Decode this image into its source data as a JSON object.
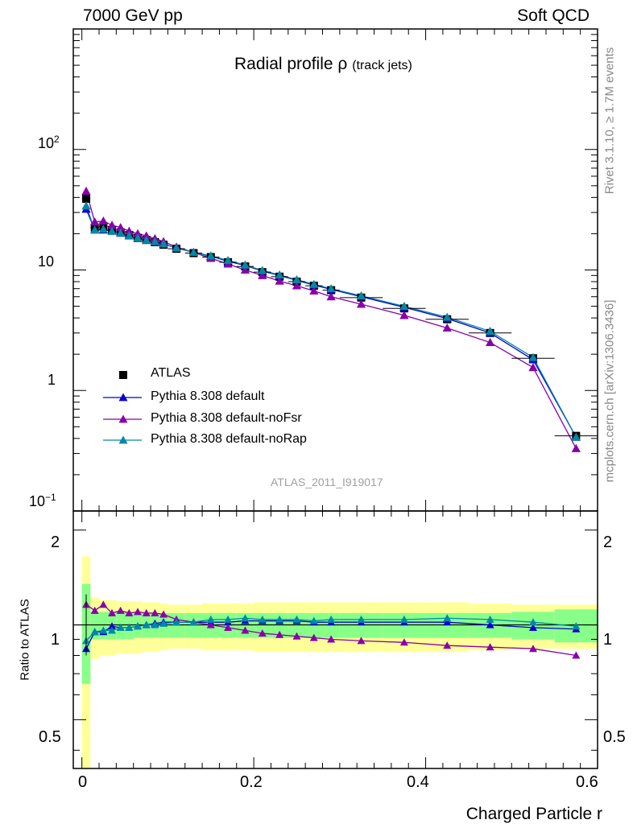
{
  "header": {
    "left": "7000 GeV pp",
    "right": "Soft QCD"
  },
  "side_labels": {
    "rivet": "Rivet 3.1.10, ≥ 1.7M events",
    "mcplots": "mcplots.cern.ch [arXiv:1306.3436]"
  },
  "chart_data": {
    "type": "line",
    "title_main": "Radial profile ρ",
    "title_sub": "(track jets)",
    "watermark": "ATLAS_2011_I919017",
    "xlabel": "Charged Particle r",
    "ylabel": "",
    "ratio_ylabel": "Ratio to ATLAS",
    "xlim": [
      -0.01,
      0.6
    ],
    "ylim": [
      0.1,
      1000
    ],
    "yscale": "log",
    "ratio_ylim": [
      0.35,
      2.3
    ],
    "ratio_yscale": "log",
    "x_ticks": [
      "0",
      "0.2",
      "0.4",
      "0.6"
    ],
    "y_ticks": [
      "10⁻¹",
      "1",
      "10",
      "10²"
    ],
    "ratio_y_ticks": [
      "0.5",
      "1",
      "2"
    ],
    "legend_position": "lower-left",
    "x": [
      0.005,
      0.015,
      0.025,
      0.035,
      0.045,
      0.055,
      0.065,
      0.075,
      0.085,
      0.095,
      0.11,
      0.13,
      0.15,
      0.17,
      0.19,
      0.21,
      0.23,
      0.25,
      0.27,
      0.29,
      0.325,
      0.375,
      0.425,
      0.475,
      0.525,
      0.575
    ],
    "xerr": [
      0.005,
      0.005,
      0.005,
      0.005,
      0.005,
      0.005,
      0.005,
      0.005,
      0.005,
      0.005,
      0.01,
      0.01,
      0.01,
      0.01,
      0.01,
      0.01,
      0.01,
      0.01,
      0.01,
      0.01,
      0.025,
      0.025,
      0.025,
      0.025,
      0.025,
      0.025
    ],
    "series": [
      {
        "name": "ATLAS",
        "color": "#000000",
        "marker": "square",
        "values": [
          39,
          22.5,
          23,
          21.5,
          20.5,
          19.5,
          18.5,
          17.8,
          17,
          16.2,
          15,
          13.8,
          12.8,
          11.6,
          10.7,
          9.6,
          8.8,
          8.0,
          7.4,
          6.8,
          5.9,
          4.8,
          3.9,
          3.0,
          1.85,
          0.42
        ]
      },
      {
        "name": "Pythia 8.308 default",
        "color": "#0000cc",
        "marker": "triangle",
        "values": [
          32,
          21.5,
          21.5,
          21,
          20.2,
          19.2,
          18.3,
          17.6,
          17,
          16.4,
          15.2,
          14,
          13,
          11.8,
          10.9,
          9.8,
          9.0,
          8.2,
          7.5,
          6.9,
          6.0,
          4.9,
          3.95,
          3.0,
          1.8,
          0.41
        ]
      },
      {
        "name": "Pythia 8.308 default-noFsr",
        "color": "#8800aa",
        "marker": "triangle",
        "values": [
          45,
          25,
          25.5,
          23.5,
          22.5,
          21,
          20,
          19.2,
          18.2,
          17.2,
          15.5,
          14,
          12.5,
          11.2,
          10.0,
          9.0,
          8.1,
          7.4,
          6.7,
          6.0,
          5.2,
          4.2,
          3.3,
          2.5,
          1.55,
          0.33
        ]
      },
      {
        "name": "Pythia 8.308 default-noRap",
        "color": "#0088a8",
        "marker": "triangle",
        "values": [
          34,
          21.5,
          21.8,
          21,
          20.3,
          19.3,
          18.5,
          17.7,
          17.2,
          16.5,
          15.2,
          14,
          13.1,
          12,
          11,
          9.9,
          9.1,
          8.3,
          7.6,
          7.0,
          6.1,
          5.0,
          4.05,
          3.1,
          1.88,
          0.41
        ]
      }
    ],
    "ratio_series": [
      {
        "name": "Pythia 8.308 default",
        "color": "#0000cc",
        "values": [
          0.84,
          0.95,
          0.95,
          0.99,
          0.98,
          0.98,
          0.99,
          1.0,
          1.01,
          1.02,
          1.02,
          1.02,
          1.02,
          1.02,
          1.03,
          1.03,
          1.03,
          1.03,
          1.02,
          1.02,
          1.02,
          1.02,
          1.02,
          1.0,
          0.98,
          0.97
        ]
      },
      {
        "name": "Pythia 8.308 default-noFsr",
        "color": "#8800aa",
        "values": [
          1.16,
          1.11,
          1.16,
          1.09,
          1.11,
          1.09,
          1.1,
          1.09,
          1.09,
          1.08,
          1.04,
          1.02,
          1.0,
          0.98,
          0.96,
          0.94,
          0.93,
          0.92,
          0.91,
          0.9,
          0.89,
          0.88,
          0.86,
          0.85,
          0.84,
          0.8
        ]
      },
      {
        "name": "Pythia 8.308 default-noRap",
        "color": "#0088a8",
        "values": [
          0.89,
          0.95,
          0.96,
          0.96,
          0.98,
          0.98,
          0.99,
          1.0,
          1.0,
          1.01,
          1.02,
          1.02,
          1.04,
          1.04,
          1.05,
          1.04,
          1.04,
          1.04,
          1.03,
          1.04,
          1.04,
          1.04,
          1.05,
          1.04,
          1.02,
          0.99
        ]
      }
    ],
    "bands": {
      "inner_color": "#88ff88",
      "outer_color": "#ffff99",
      "inner_err": [
        0.35,
        0.1,
        0.1,
        0.1,
        0.1,
        0.1,
        0.09,
        0.09,
        0.09,
        0.09,
        0.09,
        0.09,
        0.09,
        0.09,
        0.09,
        0.09,
        0.09,
        0.09,
        0.09,
        0.09,
        0.09,
        0.09,
        0.09,
        0.09,
        0.1,
        0.12
      ],
      "outer_err": [
        0.65,
        0.22,
        0.2,
        0.2,
        0.19,
        0.19,
        0.19,
        0.18,
        0.18,
        0.17,
        0.16,
        0.16,
        0.17,
        0.17,
        0.17,
        0.18,
        0.18,
        0.18,
        0.18,
        0.18,
        0.18,
        0.18,
        0.18,
        0.17,
        0.16,
        0.16
      ]
    }
  }
}
